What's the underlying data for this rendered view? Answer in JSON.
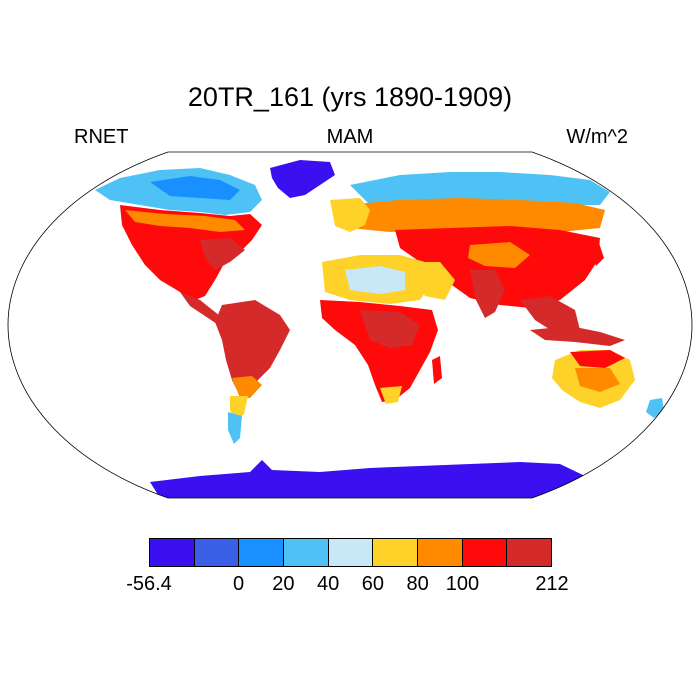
{
  "title": "20TR_161 (yrs 1890-1909)",
  "left_label": "RNET",
  "center_label": "MAM",
  "right_label": "W/m^2",
  "colorbar": {
    "colors": [
      "#3a10f0",
      "#3a5ee6",
      "#1890ff",
      "#4ec2f5",
      "#c8e8f8",
      "#ffd22a",
      "#ff8a00",
      "#ff0a0a",
      "#d42a2a"
    ],
    "labels": [
      "-56.4",
      "0",
      "20",
      "40",
      "60",
      "80",
      "100",
      "212"
    ],
    "label_boundaries": [
      0,
      2,
      3,
      4,
      5,
      6,
      7,
      9
    ]
  },
  "map": {
    "projection": "Robinson",
    "variable": "RNET",
    "season": "MAM",
    "units": "W/m^2",
    "ocean_color": "#ffffff"
  }
}
